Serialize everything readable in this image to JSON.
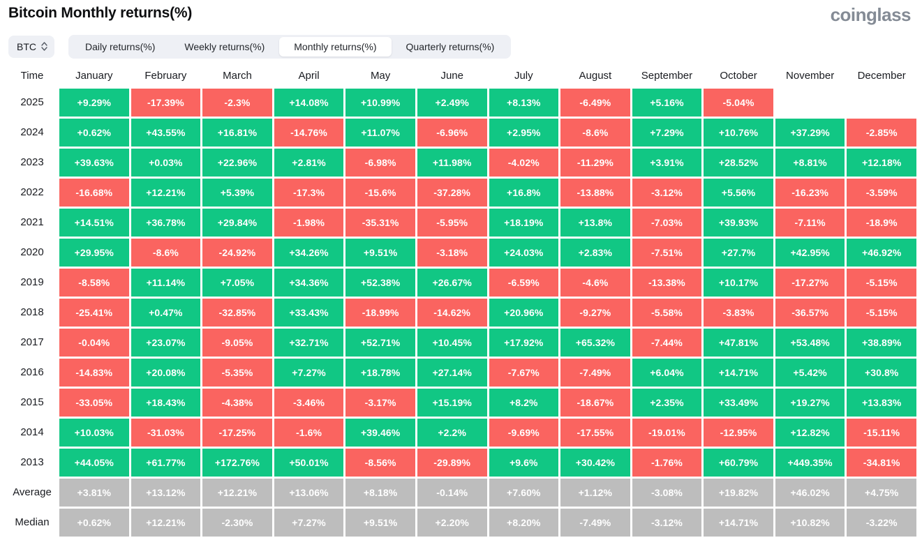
{
  "page": {
    "title": "Bitcoin Monthly returns(%)",
    "brand": "coinglass"
  },
  "controls": {
    "symbol_select": {
      "value": "BTC"
    },
    "tabs": [
      {
        "label": "Daily returns(%)",
        "active": false
      },
      {
        "label": "Weekly returns(%)",
        "active": false
      },
      {
        "label": "Monthly returns(%)",
        "active": true
      },
      {
        "label": "Quarterly returns(%)",
        "active": false
      }
    ]
  },
  "chart_data": {
    "type": "heatmap",
    "title": "Bitcoin Monthly returns(%)",
    "unit": "%",
    "colors": {
      "positive": "#11C784",
      "negative": "#FA6460",
      "summary": "#BDBDBD"
    },
    "columns": [
      "Time",
      "January",
      "February",
      "March",
      "April",
      "May",
      "June",
      "July",
      "August",
      "September",
      "October",
      "November",
      "December"
    ],
    "rows": [
      {
        "label": "2025",
        "summary": false,
        "values": [
          "+9.29%",
          "-17.39%",
          "-2.3%",
          "+14.08%",
          "+10.99%",
          "+2.49%",
          "+8.13%",
          "-6.49%",
          "+5.16%",
          "-5.04%",
          "",
          ""
        ]
      },
      {
        "label": "2024",
        "summary": false,
        "values": [
          "+0.62%",
          "+43.55%",
          "+16.81%",
          "-14.76%",
          "+11.07%",
          "-6.96%",
          "+2.95%",
          "-8.6%",
          "+7.29%",
          "+10.76%",
          "+37.29%",
          "-2.85%"
        ]
      },
      {
        "label": "2023",
        "summary": false,
        "values": [
          "+39.63%",
          "+0.03%",
          "+22.96%",
          "+2.81%",
          "-6.98%",
          "+11.98%",
          "-4.02%",
          "-11.29%",
          "+3.91%",
          "+28.52%",
          "+8.81%",
          "+12.18%"
        ]
      },
      {
        "label": "2022",
        "summary": false,
        "values": [
          "-16.68%",
          "+12.21%",
          "+5.39%",
          "-17.3%",
          "-15.6%",
          "-37.28%",
          "+16.8%",
          "-13.88%",
          "-3.12%",
          "+5.56%",
          "-16.23%",
          "-3.59%"
        ]
      },
      {
        "label": "2021",
        "summary": false,
        "values": [
          "+14.51%",
          "+36.78%",
          "+29.84%",
          "-1.98%",
          "-35.31%",
          "-5.95%",
          "+18.19%",
          "+13.8%",
          "-7.03%",
          "+39.93%",
          "-7.11%",
          "-18.9%"
        ]
      },
      {
        "label": "2020",
        "summary": false,
        "values": [
          "+29.95%",
          "-8.6%",
          "-24.92%",
          "+34.26%",
          "+9.51%",
          "-3.18%",
          "+24.03%",
          "+2.83%",
          "-7.51%",
          "+27.7%",
          "+42.95%",
          "+46.92%"
        ]
      },
      {
        "label": "2019",
        "summary": false,
        "values": [
          "-8.58%",
          "+11.14%",
          "+7.05%",
          "+34.36%",
          "+52.38%",
          "+26.67%",
          "-6.59%",
          "-4.6%",
          "-13.38%",
          "+10.17%",
          "-17.27%",
          "-5.15%"
        ]
      },
      {
        "label": "2018",
        "summary": false,
        "values": [
          "-25.41%",
          "+0.47%",
          "-32.85%",
          "+33.43%",
          "-18.99%",
          "-14.62%",
          "+20.96%",
          "-9.27%",
          "-5.58%",
          "-3.83%",
          "-36.57%",
          "-5.15%"
        ]
      },
      {
        "label": "2017",
        "summary": false,
        "values": [
          "-0.04%",
          "+23.07%",
          "-9.05%",
          "+32.71%",
          "+52.71%",
          "+10.45%",
          "+17.92%",
          "+65.32%",
          "-7.44%",
          "+47.81%",
          "+53.48%",
          "+38.89%"
        ]
      },
      {
        "label": "2016",
        "summary": false,
        "values": [
          "-14.83%",
          "+20.08%",
          "-5.35%",
          "+7.27%",
          "+18.78%",
          "+27.14%",
          "-7.67%",
          "-7.49%",
          "+6.04%",
          "+14.71%",
          "+5.42%",
          "+30.8%"
        ]
      },
      {
        "label": "2015",
        "summary": false,
        "values": [
          "-33.05%",
          "+18.43%",
          "-4.38%",
          "-3.46%",
          "-3.17%",
          "+15.19%",
          "+8.2%",
          "-18.67%",
          "+2.35%",
          "+33.49%",
          "+19.27%",
          "+13.83%"
        ]
      },
      {
        "label": "2014",
        "summary": false,
        "values": [
          "+10.03%",
          "-31.03%",
          "-17.25%",
          "-1.6%",
          "+39.46%",
          "+2.2%",
          "-9.69%",
          "-17.55%",
          "-19.01%",
          "-12.95%",
          "+12.82%",
          "-15.11%"
        ]
      },
      {
        "label": "2013",
        "summary": false,
        "values": [
          "+44.05%",
          "+61.77%",
          "+172.76%",
          "+50.01%",
          "-8.56%",
          "-29.89%",
          "+9.6%",
          "+30.42%",
          "-1.76%",
          "+60.79%",
          "+449.35%",
          "-34.81%"
        ]
      },
      {
        "label": "Average",
        "summary": true,
        "values": [
          "+3.81%",
          "+13.12%",
          "+12.21%",
          "+13.06%",
          "+8.18%",
          "-0.14%",
          "+7.60%",
          "+1.12%",
          "-3.08%",
          "+19.82%",
          "+46.02%",
          "+4.75%"
        ]
      },
      {
        "label": "Median",
        "summary": true,
        "values": [
          "+0.62%",
          "+12.21%",
          "-2.30%",
          "+7.27%",
          "+9.51%",
          "+2.20%",
          "+8.20%",
          "-7.49%",
          "-3.12%",
          "+14.71%",
          "+10.82%",
          "-3.22%"
        ]
      }
    ]
  }
}
